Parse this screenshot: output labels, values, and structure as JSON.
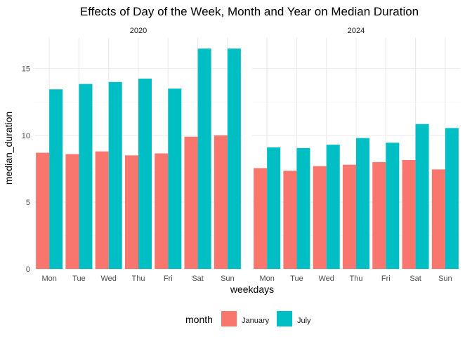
{
  "chart_data": {
    "type": "bar",
    "title": "Effects of Day of the Week, Month and Year on Median Duration",
    "xlabel": "weekdays",
    "ylabel": "median_duration",
    "ylim": [
      0,
      17.3
    ],
    "yticks": [
      0,
      5,
      10,
      15
    ],
    "grid": true,
    "legend_position": "bottom",
    "legend_title": "month",
    "categories": [
      "Mon",
      "Tue",
      "Wed",
      "Thu",
      "Fri",
      "Sat",
      "Sun"
    ],
    "series_colors": {
      "January": "#F8766D",
      "July": "#00BFC4"
    },
    "facets": [
      {
        "label": "2020",
        "series": [
          {
            "name": "January",
            "values": [
              8.7,
              8.6,
              8.8,
              8.5,
              8.65,
              9.9,
              10.0
            ]
          },
          {
            "name": "July",
            "values": [
              13.45,
              13.85,
              14.0,
              14.25,
              13.5,
              16.5,
              16.5
            ]
          }
        ]
      },
      {
        "label": "2024",
        "series": [
          {
            "name": "January",
            "values": [
              7.55,
              7.35,
              7.7,
              7.8,
              8.0,
              8.15,
              7.45
            ]
          },
          {
            "name": "July",
            "values": [
              9.1,
              9.05,
              9.3,
              9.8,
              9.45,
              10.85,
              10.55
            ]
          }
        ]
      }
    ]
  }
}
